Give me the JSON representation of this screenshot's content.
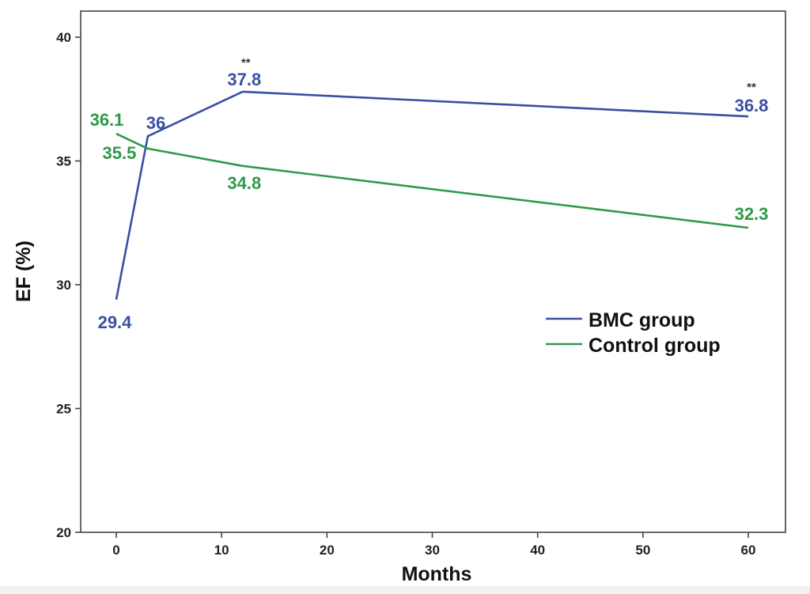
{
  "chart_data": {
    "type": "line",
    "xlabel": "Months",
    "ylabel": "EF (%)",
    "xlim": [
      -3,
      63
    ],
    "ylim": [
      20,
      41
    ],
    "xticks": [
      0,
      10,
      20,
      30,
      40,
      50,
      60
    ],
    "yticks": [
      20,
      25,
      30,
      35,
      40
    ],
    "grid": false,
    "legend_position": "right",
    "series": [
      {
        "name": "BMC group",
        "color": "#3a4fa3",
        "points": [
          {
            "x": 0,
            "y": 29.4,
            "label": "29.4"
          },
          {
            "x": 3,
            "y": 36.0,
            "label": "36"
          },
          {
            "x": 12,
            "y": 37.8,
            "label": "37.8"
          },
          {
            "x": 60,
            "y": 36.8,
            "label": "36.8"
          }
        ]
      },
      {
        "name": "Control group",
        "color": "#2e9a4a",
        "points": [
          {
            "x": 0,
            "y": 36.1,
            "label": "36.1"
          },
          {
            "x": 3,
            "y": 35.5,
            "label": "35.5"
          },
          {
            "x": 12,
            "y": 34.8,
            "label": "34.8"
          },
          {
            "x": 60,
            "y": 32.3,
            "label": "32.3"
          }
        ]
      }
    ],
    "annotations": [
      {
        "text": "**",
        "x": 12,
        "series": "BMC group"
      },
      {
        "text": "**",
        "x": 60,
        "series": "BMC group"
      }
    ]
  }
}
